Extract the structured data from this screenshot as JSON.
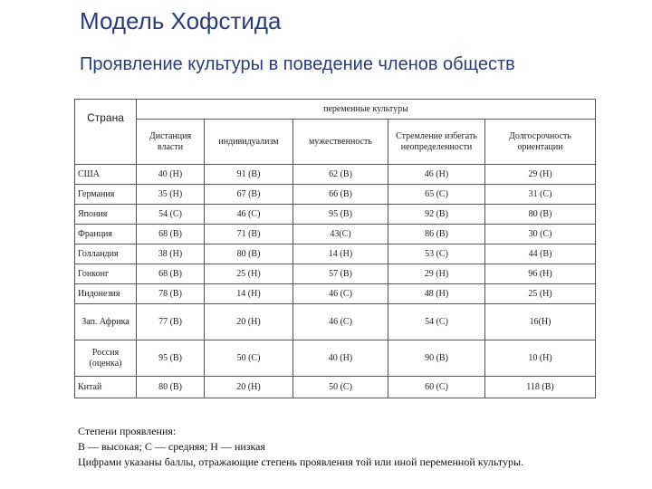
{
  "title": "Модель Хофстида",
  "subtitle": "Проявление культуры в поведение членов обществ",
  "table": {
    "country_header": "Страна",
    "group_header": "переменные культуры",
    "columns": [
      "Дистанция власти",
      "индивидуализм",
      "мужественность",
      "Стремление избегать неопределенности",
      "Долгосрочность ориентации"
    ],
    "rows": [
      {
        "country": "США",
        "values": [
          "40 (Н)",
          "91 (В)",
          "62 (В)",
          "46 (Н)",
          "29 (Н)"
        ]
      },
      {
        "country": "Германия",
        "values": [
          "35 (Н)",
          "67 (В)",
          "66 (В)",
          "65 (С)",
          "31 (С)"
        ]
      },
      {
        "country": "Япония",
        "values": [
          "54 (С)",
          "46 (С)",
          "95 (В)",
          "92 (В)",
          "80 (В)"
        ]
      },
      {
        "country": "Франция",
        "values": [
          "68 (В)",
          "71 (В)",
          "43(С)",
          "86 (В)",
          "30 (С)"
        ]
      },
      {
        "country": "Голландия",
        "values": [
          "38 (Н)",
          "80 (В)",
          "14 (Н)",
          "53 (С)",
          "44 (В)"
        ]
      },
      {
        "country": "Гонконг",
        "values": [
          "68 (В)",
          "25 (Н)",
          "57 (В)",
          "29 (Н)",
          "96 (Н)"
        ]
      },
      {
        "country": "Индонезия",
        "values": [
          "78 (В)",
          "14 (Н)",
          "46 (С)",
          "48 (Н)",
          "25 (Н)"
        ]
      },
      {
        "country": "Зап. Африка",
        "values": [
          "77 (В)",
          "20 (Н)",
          "46 (С)",
          "54 (С)",
          "16(Н)"
        ]
      },
      {
        "country": "Россия (оценка)",
        "values": [
          "95 (В)",
          "50 (С)",
          "40 (Н)",
          "90 (В)",
          "10 (Н)"
        ]
      },
      {
        "country": "Китай",
        "values": [
          "80 (В)",
          "20 (Н)",
          "50 (С)",
          "60 (С)",
          "118 (В)"
        ]
      }
    ]
  },
  "footer": {
    "line1": "Степени проявления:",
    "line2": "В — высокая; С — средняя; Н — низкая",
    "line3": "Цифрами указаны баллы, отражающие степень проявления той или иной переменной культуры."
  }
}
